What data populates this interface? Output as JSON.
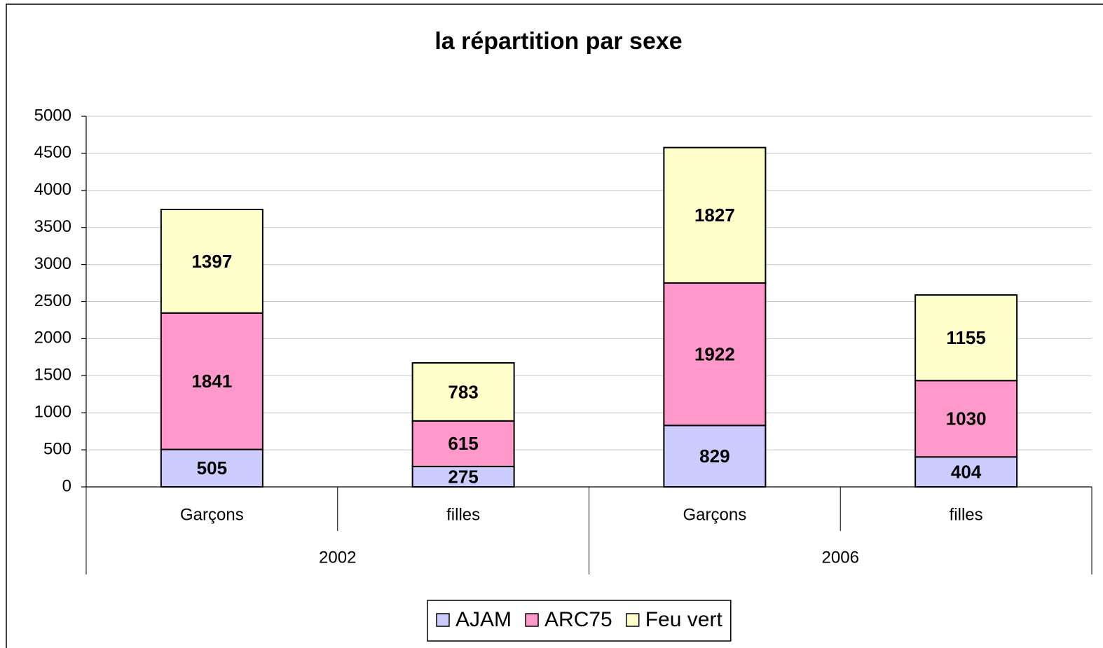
{
  "chart_data": {
    "type": "stacked-bar",
    "title": "la répartition par sexe",
    "categories": [
      "Garçons",
      "filles",
      "Garçons",
      "filles"
    ],
    "groups": [
      "2002",
      "2006"
    ],
    "series": [
      {
        "name": "AJAM",
        "color": "#ccccff",
        "values": [
          505,
          275,
          829,
          404
        ]
      },
      {
        "name": "ARC75",
        "color": "#ff99cc",
        "values": [
          1841,
          615,
          1922,
          1030
        ]
      },
      {
        "name": "Feu vert",
        "color": "#ffffcc",
        "values": [
          1397,
          783,
          1827,
          1155
        ]
      }
    ],
    "ylim": [
      0,
      5000
    ],
    "yticks": [
      0,
      500,
      1000,
      1500,
      2000,
      2500,
      3000,
      3500,
      4000,
      4500,
      5000
    ],
    "grid": true,
    "legend": "bottom"
  }
}
